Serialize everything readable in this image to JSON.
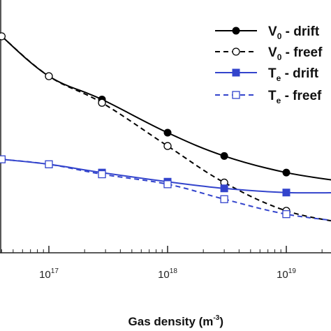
{
  "chart_data": {
    "type": "line",
    "xscale": "log",
    "xlim": [
      2.8e+16,
      3.5e+19
    ],
    "x_ticks": [
      {
        "base": "10",
        "exp": "17",
        "value": 1e+17
      },
      {
        "base": "10",
        "exp": "18",
        "value": 1e+18
      },
      {
        "base": "10",
        "exp": "19",
        "value": 1e+19
      }
    ],
    "xlabel": {
      "main": "Gas density (m",
      "exp": "-3",
      "close": ")"
    },
    "ylabel": "",
    "grid": false,
    "legend_position": "top-right",
    "series": [
      {
        "key": "v0_drift",
        "legend": {
          "main": "V",
          "sub": "0",
          "rest": " - drift"
        },
        "color": "#000000",
        "dashed": false,
        "marker": "filled-circle",
        "x": [
          4e+16,
          1e+17,
          2.8e+17,
          1e+18,
          3e+18,
          1e+19,
          3.5e+19
        ],
        "y": [
          1.0,
          0.76,
          0.62,
          0.42,
          0.28,
          0.18,
          0.12
        ]
      },
      {
        "key": "v0_freef",
        "legend": {
          "main": "V",
          "sub": "0",
          "rest": " - freef"
        },
        "color": "#000000",
        "dashed": true,
        "marker": "open-circle",
        "x": [
          4e+16,
          1e+17,
          2.8e+17,
          1e+18,
          3e+18,
          1e+19,
          3.5e+19
        ],
        "y": [
          1.0,
          0.76,
          0.6,
          0.34,
          0.12,
          -0.05,
          -0.13
        ]
      },
      {
        "key": "te_drift",
        "legend": {
          "main": "T",
          "sub": "e",
          "rest": " - drift"
        },
        "color": "#3344cc",
        "dashed": false,
        "marker": "filled-square",
        "x": [
          4e+16,
          1e+17,
          2.8e+17,
          1e+18,
          3e+18,
          1e+19,
          3.5e+19
        ],
        "y": [
          0.26,
          0.23,
          0.18,
          0.125,
          0.085,
          0.06,
          0.06
        ]
      },
      {
        "key": "te_freef",
        "legend": {
          "main": "T",
          "sub": "e",
          "rest": " - freef"
        },
        "color": "#3344cc",
        "dashed": true,
        "marker": "open-square",
        "x": [
          4e+16,
          1e+17,
          2.8e+17,
          1e+18,
          3e+18,
          1e+19,
          3.5e+19
        ],
        "y": [
          0.26,
          0.23,
          0.17,
          0.11,
          0.02,
          -0.07,
          -0.12
        ]
      }
    ]
  }
}
